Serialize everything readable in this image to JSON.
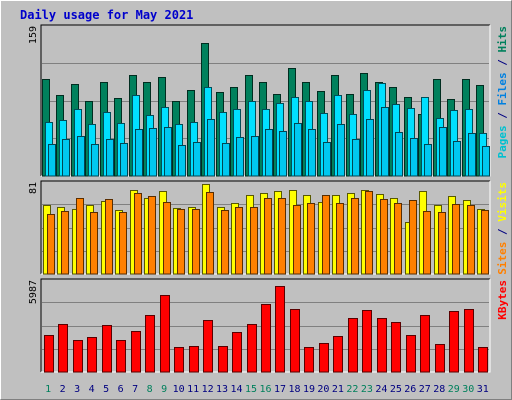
{
  "chart_data": {
    "type": "bar",
    "title": "Daily usage for May 2021",
    "title_color": "#0000cc",
    "background": "#c0c0c0",
    "days": [
      "1",
      "2",
      "3",
      "4",
      "5",
      "6",
      "7",
      "8",
      "9",
      "10",
      "11",
      "12",
      "13",
      "14",
      "15",
      "16",
      "17",
      "18",
      "19",
      "20",
      "21",
      "22",
      "23",
      "24",
      "25",
      "26",
      "27",
      "28",
      "29",
      "30",
      "31"
    ],
    "weekend_days": [
      1,
      8,
      9,
      15,
      16,
      22,
      23,
      29,
      30
    ],
    "weekend_color": "#00805c",
    "weekday_color": "#000080",
    "panels": [
      {
        "id": "hits-files-pages",
        "ymax_label": "159",
        "ymax": 159,
        "legend": [
          {
            "text": "Pages",
            "color": "#00c0d0"
          },
          {
            "text": " / ",
            "color": "#000080"
          },
          {
            "text": "Files",
            "color": "#0080e0"
          },
          {
            "text": " / ",
            "color": "#000080"
          },
          {
            "text": "Hits",
            "color": "#00805c"
          }
        ],
        "series": [
          {
            "name": "Hits",
            "color": "#00805c",
            "values": [
              104,
              86,
              98,
              80,
              100,
              83,
              108,
              100,
              106,
              80,
              92,
              142,
              90,
              95,
              108,
              100,
              88,
              115,
              100,
              91,
              108,
              87,
              110,
              100,
              95,
              84,
              66,
              103,
              82,
              103,
              97
            ]
          },
          {
            "name": "Files",
            "color": "#00e0ff",
            "values": [
              58,
              60,
              71,
              56,
              68,
              57,
              86,
              65,
              74,
              56,
              58,
              95,
              68,
              71,
              80,
              72,
              78,
              84,
              80,
              67,
              86,
              66,
              92,
              99,
              77,
              73,
              84,
              62,
              70,
              71,
              46
            ]
          },
          {
            "name": "Pages",
            "color": "#00c8f0",
            "values": [
              34,
              40,
              43,
              34,
              40,
              35,
              50,
              51,
              52,
              33,
              36,
              61,
              35,
              42,
              43,
              50,
              48,
              57,
              50,
              36,
              55,
              40,
              61,
              74,
              47,
              41,
              34,
              52,
              37,
              46,
              32
            ]
          }
        ]
      },
      {
        "id": "visits-sites",
        "ymax_label": "81",
        "ymax": 81,
        "legend": [
          {
            "text": "Sites",
            "color": "#ff8000"
          },
          {
            "text": " / ",
            "color": "#000080"
          },
          {
            "text": "Visits",
            "color": "#ffff00"
          }
        ],
        "series": [
          {
            "name": "Visits",
            "color": "#ffff00",
            "values": [
              61,
              60,
              58,
              61,
              65,
              57,
              75,
              68,
              74,
              59,
              60,
              80,
              60,
              63,
              70,
              72,
              74,
              75,
              70,
              64,
              70,
              72,
              75,
              71,
              68,
              46,
              74,
              61,
              69,
              66,
              58
            ]
          },
          {
            "name": "Sites",
            "color": "#ff8000",
            "values": [
              53,
              56,
              68,
              55,
              67,
              55,
              72,
              69,
              64,
              58,
              58,
              73,
              57,
              60,
              60,
              68,
              68,
              61,
              63,
              70,
              63,
              68,
              74,
              67,
              63,
              66,
              56,
              55,
              62,
              61,
              57
            ]
          }
        ]
      },
      {
        "id": "kbytes",
        "ymax_label": "5987",
        "ymax": 5987,
        "legend": [
          {
            "text": "KBytes",
            "color": "#ff0000"
          }
        ],
        "series": [
          {
            "name": "KBytes",
            "color": "#ff0000",
            "values": [
              2450,
              3180,
              2130,
              2290,
              3070,
              2130,
              2730,
              3720,
              5080,
              1630,
              1700,
              3440,
              1700,
              2650,
              3190,
              4480,
              5690,
              4130,
              1630,
              1910,
              2400,
              3550,
              4060,
              3540,
              3260,
              2440,
              3750,
              1850,
              4020,
              4150,
              1630
            ]
          }
        ]
      }
    ]
  }
}
